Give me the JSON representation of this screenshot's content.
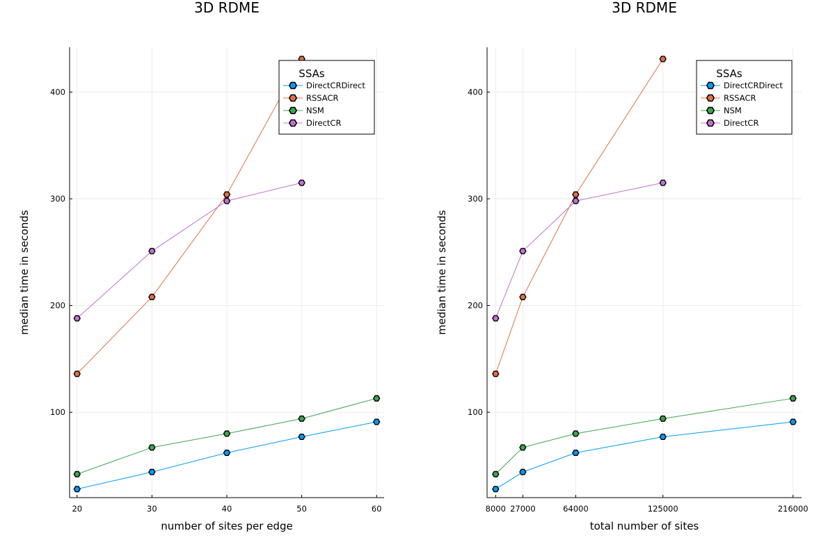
{
  "chart_data": [
    {
      "type": "line",
      "title": "3D RDME",
      "xlabel": "number of sites per edge",
      "ylabel": "median time in seconds",
      "x": [
        20,
        30,
        40,
        50,
        60
      ],
      "xticks": [
        "20",
        "30",
        "40",
        "50",
        "60"
      ],
      "xlim": [
        19,
        61
      ],
      "ylim": [
        20,
        442
      ],
      "yticks": [
        "100",
        "200",
        "300",
        "400"
      ],
      "legend_title": "SSAs",
      "legend_position": "top-right",
      "grid": true,
      "series": [
        {
          "name": "DirectCRDirect",
          "color": "#009af9",
          "values": [
            28,
            44,
            62,
            77,
            91
          ]
        },
        {
          "name": "RSSACR",
          "color": "#e26f46",
          "values": [
            136,
            208,
            304,
            431,
            null
          ]
        },
        {
          "name": "NSM",
          "color": "#3da44d",
          "values": [
            42,
            67,
            80,
            94,
            113
          ]
        },
        {
          "name": "DirectCR",
          "color": "#c271d2",
          "values": [
            188,
            251,
            298,
            315,
            null
          ]
        }
      ]
    },
    {
      "type": "line",
      "title": "3D RDME",
      "xlabel": "total number of sites",
      "ylabel": "median time in seconds",
      "x": [
        8000,
        27000,
        64000,
        125000,
        216000
      ],
      "xticks": [
        "8000",
        "27000",
        "64000",
        "125000",
        "216000"
      ],
      "xlim": [
        2000,
        222000
      ],
      "ylim": [
        20,
        442
      ],
      "yticks": [
        "100",
        "200",
        "300",
        "400"
      ],
      "legend_title": "SSAs",
      "legend_position": "top-right",
      "grid": true,
      "series": [
        {
          "name": "DirectCRDirect",
          "color": "#009af9",
          "values": [
            28,
            44,
            62,
            77,
            91
          ]
        },
        {
          "name": "RSSACR",
          "color": "#e26f46",
          "values": [
            136,
            208,
            304,
            431,
            null
          ]
        },
        {
          "name": "NSM",
          "color": "#3da44d",
          "values": [
            42,
            67,
            80,
            94,
            113
          ]
        },
        {
          "name": "DirectCR",
          "color": "#c271d2",
          "values": [
            188,
            251,
            298,
            315,
            null
          ]
        }
      ]
    }
  ]
}
